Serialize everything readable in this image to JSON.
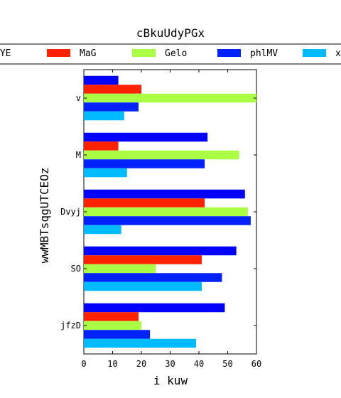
{
  "chart_data": {
    "type": "bar",
    "orientation": "horizontal",
    "title": "cBkuUdyPGx",
    "xlabel": "i kuw",
    "ylabel": "wwMBTsqgUTCEOz",
    "xlim": [
      0,
      60
    ],
    "xticks": [
      "0",
      "10",
      "20",
      "30",
      "40",
      "50",
      "60"
    ],
    "categories": [
      "v",
      "M",
      "Dvyj",
      "SO",
      "jfzD"
    ],
    "legend_position": "top",
    "series": [
      {
        "name": "fYE",
        "color": "#0000ff",
        "values": [
          12,
          43,
          56,
          53,
          49
        ]
      },
      {
        "name": "MaG",
        "color": "#ff2200",
        "values": [
          20,
          12,
          42,
          41,
          19
        ]
      },
      {
        "name": "Gelo",
        "color": "#aaff44",
        "values": [
          60,
          54,
          57,
          25,
          20
        ]
      },
      {
        "name": "phlMV",
        "color": "#0022ff",
        "values": [
          19,
          42,
          58,
          48,
          23
        ]
      },
      {
        "name": "x",
        "color": "#00bbff",
        "values": [
          14,
          15,
          13,
          41,
          39
        ]
      }
    ]
  }
}
